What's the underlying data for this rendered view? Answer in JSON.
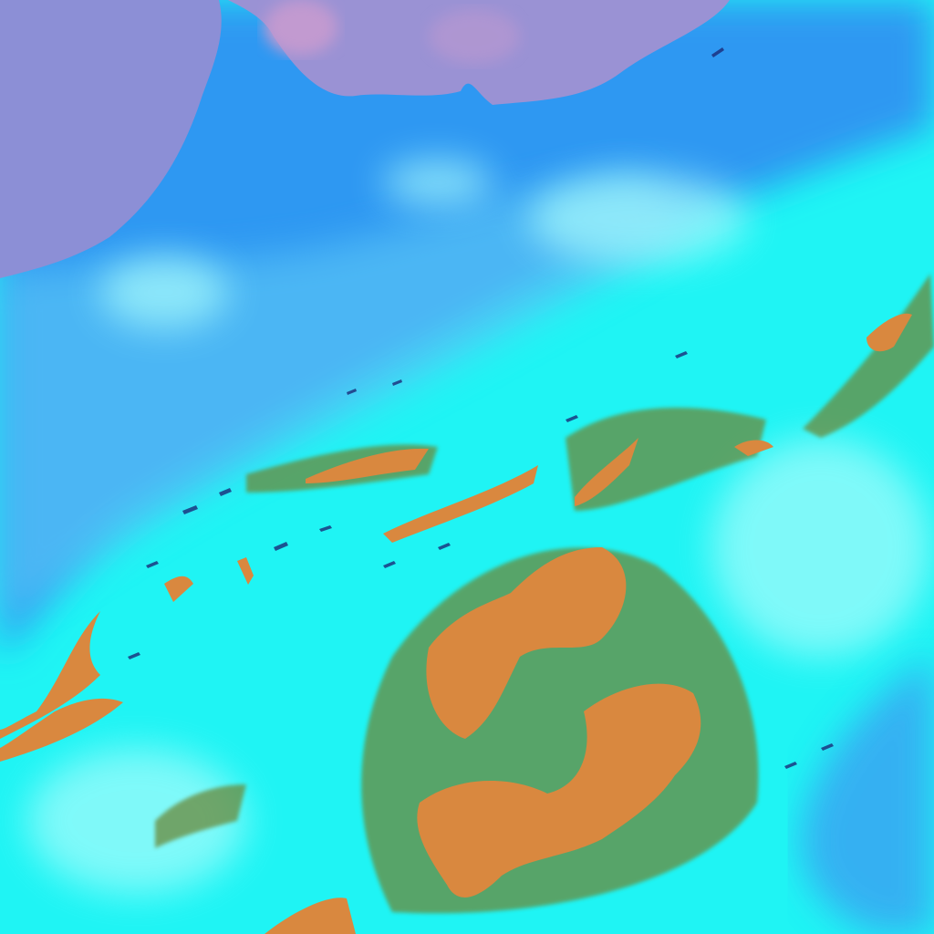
{
  "image": {
    "kind": "false-color satellite imagery",
    "colors": {
      "land": "#8c8fd6",
      "land_pink": "#c29ad0",
      "clear_low": "#2a8cf0",
      "mid_blue": "#3aa8f4",
      "cloud_cyan": "#1ff4f4",
      "cloud_bright": "#a8fcfc",
      "high_cloud_orange": "#d9883f",
      "cloud_edge_green": "#6a8a3a",
      "shadow_dark": "#1a2a78"
    }
  }
}
